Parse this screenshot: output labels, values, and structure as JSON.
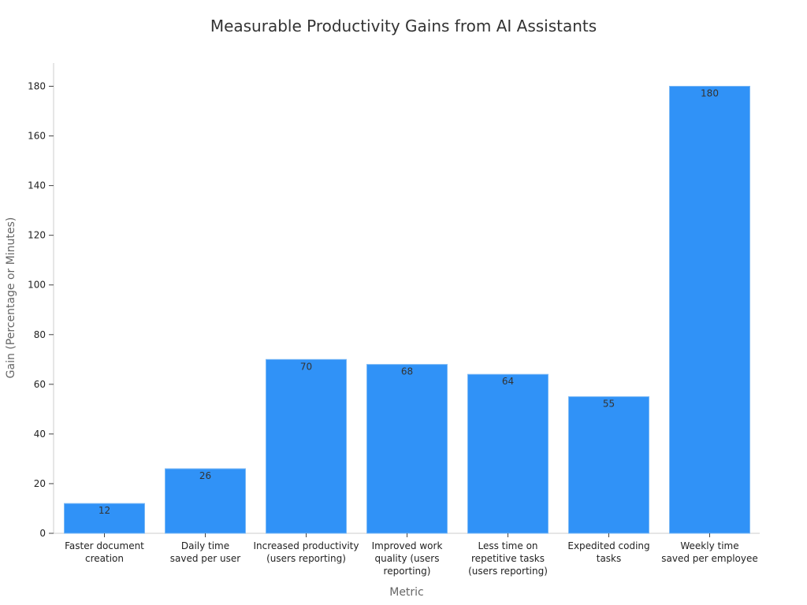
{
  "chart_data": {
    "type": "bar",
    "title": "Measurable Productivity Gains from AI Assistants",
    "xlabel": "Metric",
    "ylabel": "Gain (Percentage or Minutes)",
    "categories": [
      [
        "Faster document",
        "creation"
      ],
      [
        "Daily time",
        "saved per user"
      ],
      [
        "Increased productivity",
        "(users reporting)"
      ],
      [
        "Improved work",
        "quality (users",
        "reporting)"
      ],
      [
        "Less time on",
        "repetitive tasks",
        "(users reporting)"
      ],
      [
        "Expedited coding",
        "tasks"
      ],
      [
        "Weekly time",
        "saved per employee"
      ]
    ],
    "values": [
      12,
      26,
      70,
      68,
      64,
      55,
      180
    ],
    "ylim": [
      0,
      190
    ],
    "yticks": [
      0,
      20,
      40,
      60,
      80,
      100,
      120,
      140,
      160,
      180
    ],
    "grid": false,
    "bar_color": "#3092f7"
  }
}
